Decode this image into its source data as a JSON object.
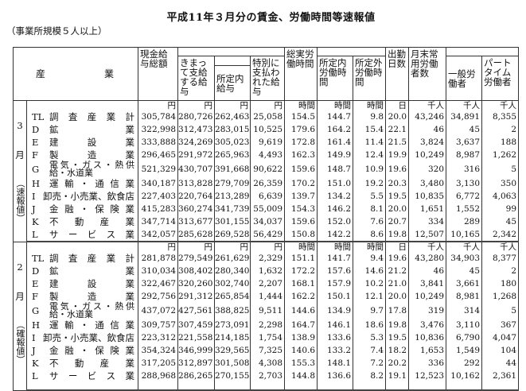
{
  "title": "平成11年３月分の賃金、労働時間等速報値",
  "subtitle": "（事業所規模５人以上）",
  "header": {
    "industry": "産　業",
    "total_cash": "現金給与総額",
    "regular": "きまって支給する給与",
    "scheduled": "所定内給与",
    "special": "特別に支払われた給与",
    "total_hours": "総実労働時間",
    "scheduled_hours": "所定内労働時間",
    "overtime_hours": "所定外労働時間",
    "days": "出勤日数",
    "employees": "月末常用労働者数",
    "general": "一般労働者",
    "part_time": "パートタイム労働者"
  },
  "units": [
    "円",
    "円",
    "円",
    "円",
    "時間",
    "時間",
    "時間",
    "日",
    "千人",
    "千人",
    "千人"
  ],
  "blocks": [
    {
      "month": "3",
      "month_suffix": "月",
      "status": "（速報値）",
      "rows": [
        {
          "code": "TL",
          "name": "調査産業計",
          "values": [
            "305,784",
            "280,726",
            "262,463",
            "25,058",
            "154.5",
            "144.7",
            "9.8",
            "20.0",
            "43,246",
            "34,891",
            "8,355"
          ]
        },
        {
          "code": "D",
          "name": "鉱業",
          "values": [
            "322,998",
            "312,473",
            "283,015",
            "10,525",
            "179.6",
            "164.2",
            "15.4",
            "22.1",
            "46",
            "45",
            "2"
          ]
        },
        {
          "code": "E",
          "name": "建設業",
          "values": [
            "333,888",
            "324,269",
            "305,023",
            "9,619",
            "172.8",
            "161.4",
            "11.4",
            "21.5",
            "3,824",
            "3,637",
            "188"
          ]
        },
        {
          "code": "F",
          "name": "製造業",
          "values": [
            "296,465",
            "291,972",
            "265,963",
            "4,493",
            "162.3",
            "149.9",
            "12.4",
            "19.9",
            "10,249",
            "8,987",
            "1,262"
          ]
        },
        {
          "code": "G",
          "name": "電気・ガス・熱供給・水道業",
          "values": [
            "521,329",
            "430,707",
            "391,668",
            "90,622",
            "159.6",
            "148.7",
            "10.9",
            "19.6",
            "320",
            "316",
            "5"
          ]
        },
        {
          "code": "H",
          "name": "運輸・通信業",
          "values": [
            "340,187",
            "313,828",
            "279,709",
            "26,359",
            "170.2",
            "151.0",
            "19.2",
            "20.3",
            "3,480",
            "3,130",
            "350"
          ]
        },
        {
          "code": "I",
          "name": "卸売・小売業、飲食店",
          "values": [
            "227,403",
            "220,764",
            "213,289",
            "6,639",
            "139.7",
            "134.2",
            "5.5",
            "19.5",
            "10,835",
            "6,772",
            "4,063"
          ]
        },
        {
          "code": "J",
          "name": "金融・保険業",
          "values": [
            "415,283",
            "360,274",
            "341,739",
            "55,009",
            "154.3",
            "146.2",
            "8.1",
            "20.0",
            "1,651",
            "1,552",
            "99"
          ]
        },
        {
          "code": "K",
          "name": "不動産業",
          "values": [
            "347,714",
            "313,677",
            "301,155",
            "34,037",
            "159.6",
            "152.0",
            "7.6",
            "20.7",
            "334",
            "289",
            "45"
          ]
        },
        {
          "code": "L",
          "name": "サービス業",
          "values": [
            "342,057",
            "285,628",
            "269,528",
            "56,429",
            "150.8",
            "142.2",
            "8.6",
            "19.8",
            "12,507",
            "10,165",
            "2,342"
          ]
        }
      ]
    },
    {
      "month": "2",
      "month_suffix": "月",
      "status": "（確報値）",
      "rows": [
        {
          "code": "TL",
          "name": "調査産業計",
          "values": [
            "281,878",
            "279,549",
            "261,629",
            "2,329",
            "151.1",
            "141.7",
            "9.4",
            "19.6",
            "43,280",
            "34,903",
            "8,377"
          ]
        },
        {
          "code": "D",
          "name": "鉱業",
          "values": [
            "310,034",
            "308,402",
            "280,340",
            "1,632",
            "172.2",
            "157.6",
            "14.6",
            "21.2",
            "46",
            "45",
            "2"
          ]
        },
        {
          "code": "E",
          "name": "建設業",
          "values": [
            "322,467",
            "320,260",
            "302,740",
            "2,207",
            "168.1",
            "157.9",
            "10.2",
            "21.0",
            "3,841",
            "3,661",
            "180"
          ]
        },
        {
          "code": "F",
          "name": "製造業",
          "values": [
            "292,756",
            "291,312",
            "265,854",
            "1,444",
            "162.2",
            "150.1",
            "12.1",
            "20.0",
            "10,249",
            "8,981",
            "1,268"
          ]
        },
        {
          "code": "G",
          "name": "電気・ガス・熱供給・水道業",
          "values": [
            "437,072",
            "427,561",
            "388,825",
            "9,511",
            "144.6",
            "134.9",
            "9.7",
            "17.8",
            "319",
            "314",
            "5"
          ]
        },
        {
          "code": "H",
          "name": "運輸・通信業",
          "values": [
            "309,757",
            "307,459",
            "273,091",
            "2,298",
            "164.7",
            "146.1",
            "18.6",
            "19.8",
            "3,476",
            "3,110",
            "367"
          ]
        },
        {
          "code": "I",
          "name": "卸売・小売業、飲食店",
          "values": [
            "223,312",
            "221,558",
            "214,185",
            "1,754",
            "138.9",
            "133.6",
            "5.3",
            "19.5",
            "10,836",
            "6,790",
            "4,047"
          ]
        },
        {
          "code": "J",
          "name": "金融・保険業",
          "values": [
            "354,324",
            "346,999",
            "329,565",
            "7,325",
            "140.6",
            "133.2",
            "7.4",
            "18.2",
            "1,653",
            "1,549",
            "104"
          ]
        },
        {
          "code": "K",
          "name": "不動産業",
          "values": [
            "317,205",
            "312,897",
            "301,508",
            "4,308",
            "155.3",
            "148.1",
            "7.2",
            "20.2",
            "336",
            "292",
            "44"
          ]
        },
        {
          "code": "L",
          "name": "サービス業",
          "values": [
            "288,968",
            "286,265",
            "270,155",
            "2,703",
            "144.8",
            "136.6",
            "8.2",
            "19.1",
            "12,523",
            "10,162",
            "2,361"
          ]
        }
      ]
    }
  ]
}
